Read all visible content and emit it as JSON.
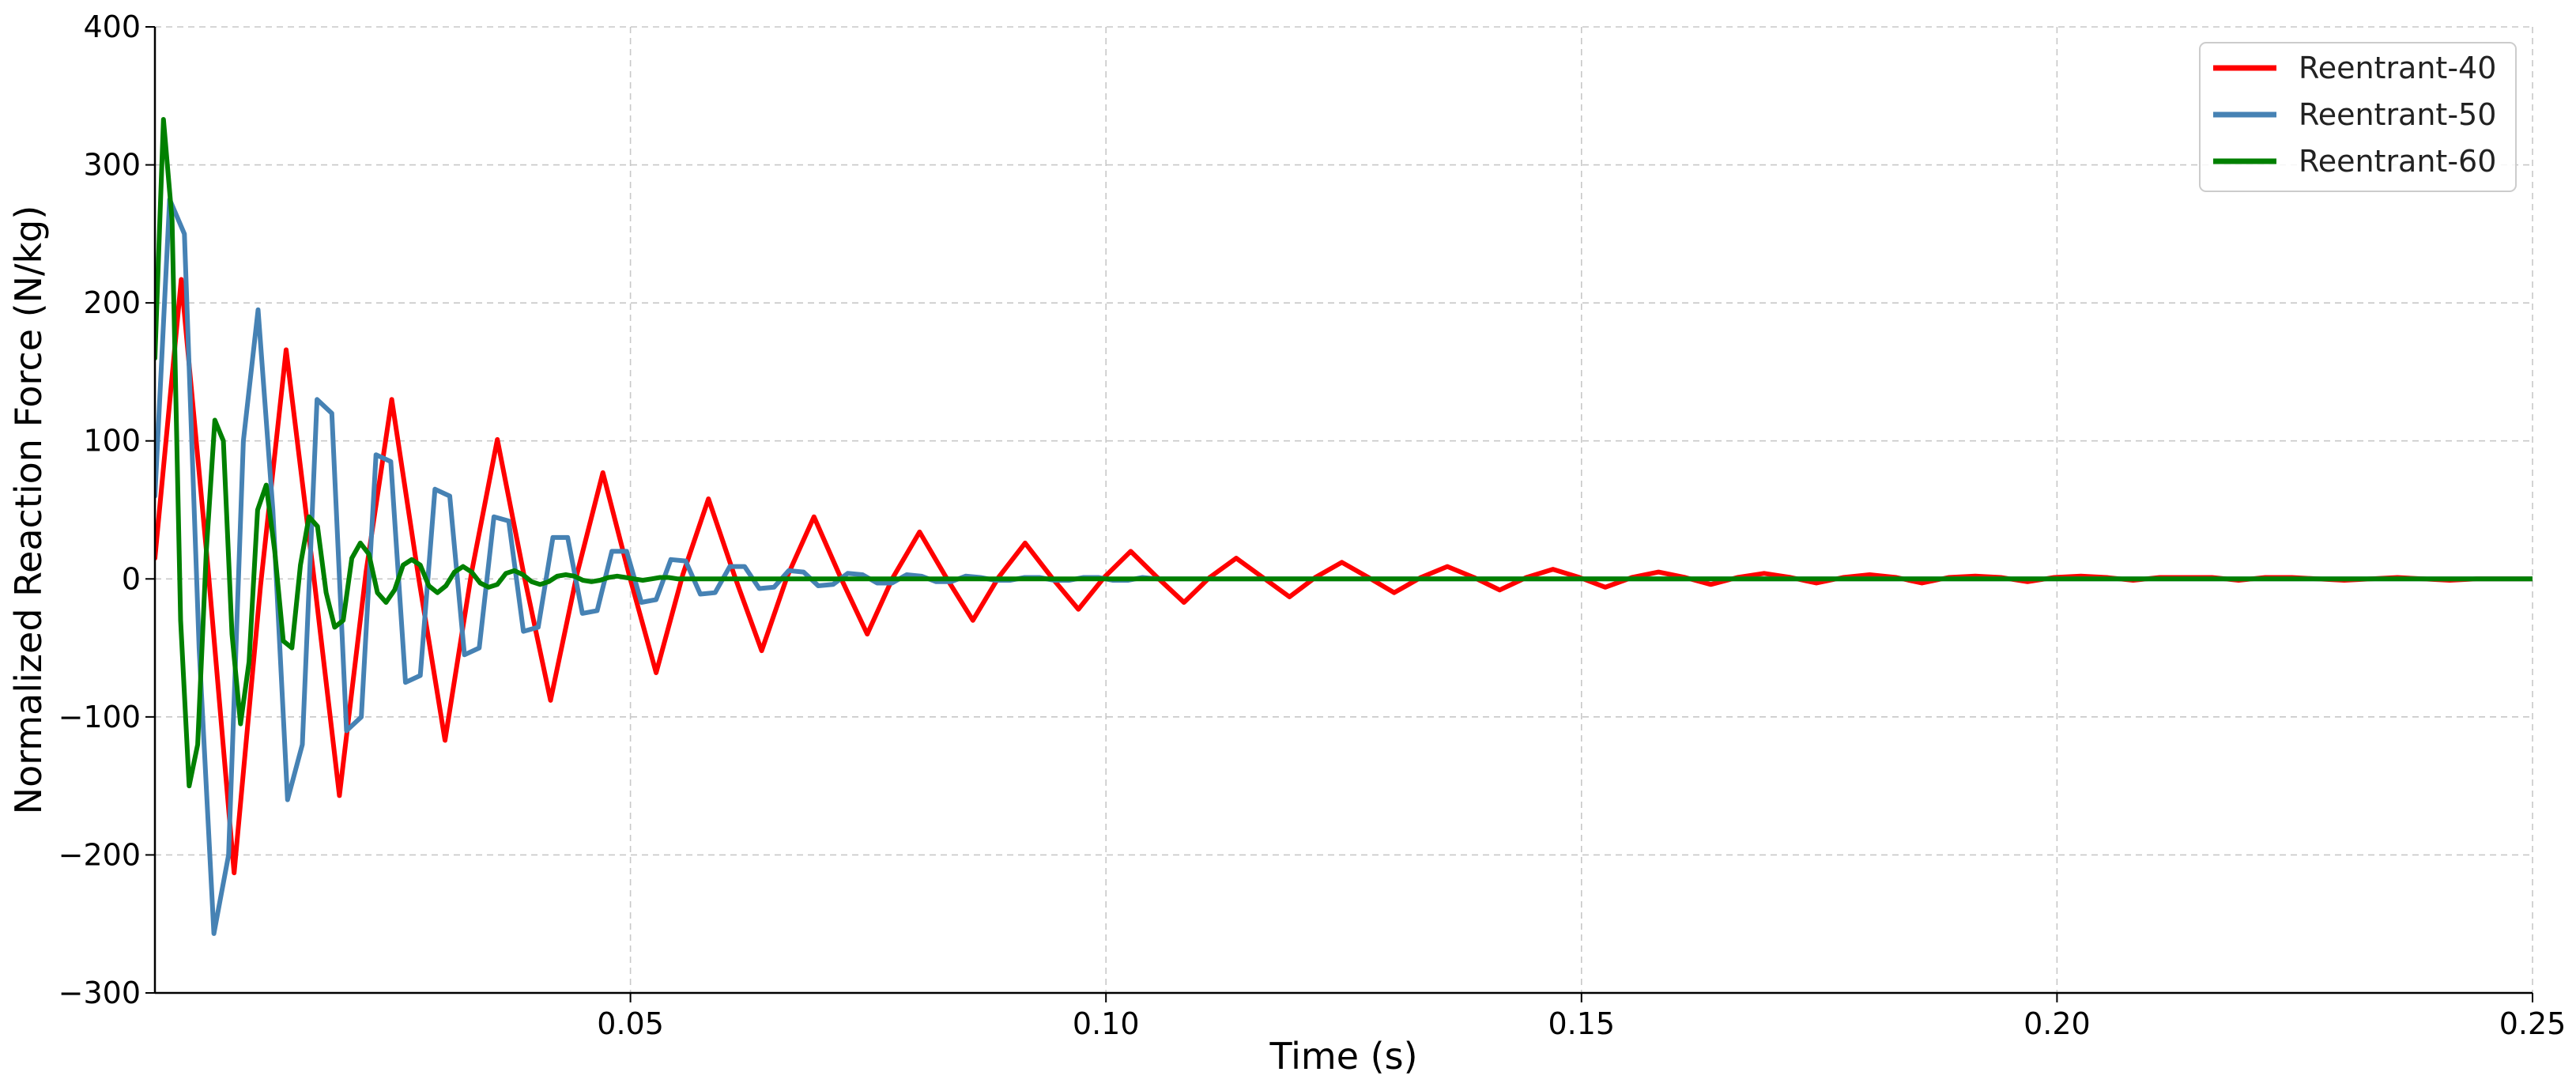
{
  "chart_data": {
    "type": "line",
    "title": "",
    "xlabel": "Time (s)",
    "ylabel": "Normalized Reaction Force (N/kg)",
    "xlim": [
      0.0,
      0.25
    ],
    "ylim": [
      -300,
      400
    ],
    "xticks": [
      {
        "value": 0.05,
        "label": "0.05"
      },
      {
        "value": 0.1,
        "label": "0.10"
      },
      {
        "value": 0.15,
        "label": "0.15"
      },
      {
        "value": 0.2,
        "label": "0.20"
      },
      {
        "value": 0.25,
        "label": "0.25"
      }
    ],
    "yticks": [
      {
        "value": 400,
        "label": "400"
      },
      {
        "value": 300,
        "label": "300"
      },
      {
        "value": 200,
        "label": "200"
      },
      {
        "value": 100,
        "label": "100"
      },
      {
        "value": 0,
        "label": "0"
      },
      {
        "value": -100,
        "label": "−100"
      },
      {
        "value": -200,
        "label": "−200"
      },
      {
        "value": -300,
        "label": "−300"
      }
    ],
    "grid": true,
    "legend_position": "top-right",
    "series": [
      {
        "name": "Reentrant-40",
        "color": "#ff0000",
        "x": [
          0.0,
          0.00277,
          0.00555,
          0.00833,
          0.0111,
          0.0138,
          0.0166,
          0.0194,
          0.0222,
          0.0249,
          0.0277,
          0.0305,
          0.0333,
          0.036,
          0.0388,
          0.0416,
          0.0444,
          0.0471,
          0.0499,
          0.0527,
          0.0555,
          0.0582,
          0.061,
          0.0638,
          0.0665,
          0.0693,
          0.0721,
          0.0749,
          0.0776,
          0.0804,
          0.0832,
          0.086,
          0.0887,
          0.0915,
          0.0943,
          0.0971,
          0.0998,
          0.1026,
          0.1054,
          0.1082,
          0.1109,
          0.1137,
          0.1165,
          0.1193,
          0.122,
          0.1248,
          0.1276,
          0.1303,
          0.1331,
          0.1359,
          0.1387,
          0.1414,
          0.1442,
          0.147,
          0.1498,
          0.1525,
          0.1553,
          0.1581,
          0.1609,
          0.1636,
          0.1664,
          0.1692,
          0.172,
          0.1747,
          0.1775,
          0.1803,
          0.1831,
          0.1858,
          0.1886,
          0.1914,
          0.1941,
          0.1969,
          0.1997,
          0.2025,
          0.2052,
          0.208,
          0.2108,
          0.2136,
          0.2163,
          0.2191,
          0.2219,
          0.2247,
          0.2274,
          0.2302,
          0.233,
          0.2358,
          0.2385,
          0.2413,
          0.2441,
          0.2469,
          0.25
        ],
        "values": [
          15,
          217,
          10,
          -213,
          -5,
          166,
          8,
          -157,
          5,
          130,
          2,
          -117,
          5,
          101,
          3,
          -88,
          4,
          77,
          2,
          -68,
          3,
          58,
          1,
          -52,
          2,
          45,
          1,
          -40,
          1,
          34,
          1,
          -30,
          1,
          26,
          1,
          -22,
          1,
          20,
          1,
          -17,
          1,
          15,
          1,
          -13,
          1,
          12,
          1,
          -10,
          1,
          9,
          1,
          -8,
          1,
          7,
          1,
          -6,
          1,
          5,
          1,
          -4,
          1,
          4,
          1,
          -3,
          1,
          3,
          1,
          -3,
          1,
          2,
          1,
          -2,
          1,
          2,
          1,
          -1,
          1,
          1,
          1,
          -1,
          1,
          1,
          0,
          -1,
          0,
          1,
          0,
          -1,
          0,
          0,
          0
        ]
      },
      {
        "name": "Reentrant-50",
        "color": "#4682b4",
        "x": [
          0.0,
          0.00155,
          0.0031,
          0.00465,
          0.0062,
          0.00775,
          0.0093,
          0.01085,
          0.0124,
          0.01395,
          0.0155,
          0.01705,
          0.0186,
          0.02015,
          0.0217,
          0.02325,
          0.0248,
          0.02635,
          0.0279,
          0.02945,
          0.031,
          0.03255,
          0.0341,
          0.03565,
          0.0372,
          0.03875,
          0.0403,
          0.04185,
          0.0434,
          0.04495,
          0.0465,
          0.04805,
          0.0496,
          0.05115,
          0.0527,
          0.05425,
          0.0558,
          0.05735,
          0.0589,
          0.06045,
          0.062,
          0.06355,
          0.0651,
          0.06665,
          0.0682,
          0.06975,
          0.0713,
          0.07285,
          0.0744,
          0.07595,
          0.0775,
          0.07905,
          0.0806,
          0.08215,
          0.0837,
          0.08525,
          0.0868,
          0.08835,
          0.0899,
          0.09145,
          0.093,
          0.09455,
          0.0961,
          0.09765,
          0.0992,
          0.10075,
          0.1023,
          0.10385,
          0.1054,
          0.10695,
          0.1085,
          0.11005,
          0.1116,
          0.1132,
          0.115,
          0.12,
          0.13,
          0.14,
          0.15,
          0.16,
          0.17,
          0.18,
          0.19,
          0.2,
          0.21,
          0.22,
          0.23,
          0.24,
          0.25
        ],
        "values": [
          60,
          275,
          250,
          -50,
          -257,
          -200,
          100,
          195,
          50,
          -160,
          -120,
          130,
          120,
          -110,
          -100,
          90,
          85,
          -75,
          -70,
          65,
          60,
          -55,
          -50,
          45,
          42,
          -38,
          -35,
          30,
          30,
          -25,
          -23,
          20,
          20,
          -17,
          -15,
          14,
          13,
          -11,
          -10,
          9,
          9,
          -7,
          -6,
          6,
          5,
          -5,
          -4,
          4,
          3,
          -3,
          -3,
          3,
          2,
          -2,
          -2,
          2,
          1,
          -1,
          -1,
          1,
          1,
          -1,
          -1,
          1,
          1,
          -1,
          -1,
          1,
          0,
          0,
          0,
          0,
          0,
          0,
          0,
          0,
          0,
          0,
          0,
          0,
          0,
          0,
          0,
          0,
          0,
          0,
          0,
          0,
          0
        ]
      },
      {
        "name": "Reentrant-60",
        "color": "#008000",
        "x": [
          0.0,
          0.0009,
          0.0018,
          0.0027,
          0.0036,
          0.0045,
          0.0054,
          0.0063,
          0.0072,
          0.0081,
          0.009,
          0.0099,
          0.0108,
          0.0117,
          0.0126,
          0.0135,
          0.0144,
          0.0153,
          0.0162,
          0.0171,
          0.018,
          0.0189,
          0.0198,
          0.0207,
          0.0216,
          0.0225,
          0.0234,
          0.0243,
          0.0252,
          0.0261,
          0.027,
          0.0279,
          0.0288,
          0.0297,
          0.0306,
          0.0315,
          0.0324,
          0.0333,
          0.0342,
          0.0351,
          0.036,
          0.0369,
          0.0378,
          0.0387,
          0.0396,
          0.0405,
          0.0414,
          0.0423,
          0.0432,
          0.0441,
          0.045,
          0.0459,
          0.0468,
          0.0477,
          0.0486,
          0.0495,
          0.0504,
          0.0513,
          0.0522,
          0.0531,
          0.054,
          0.055,
          0.06,
          0.07,
          0.08,
          0.09,
          0.1,
          0.12,
          0.14,
          0.16,
          0.18,
          0.2,
          0.22,
          0.24,
          0.25
        ],
        "values": [
          160,
          333,
          260,
          -30,
          -150,
          -120,
          20,
          115,
          100,
          -40,
          -105,
          -60,
          50,
          68,
          20,
          -45,
          -50,
          10,
          45,
          38,
          -10,
          -35,
          -30,
          15,
          26,
          18,
          -10,
          -17,
          -8,
          10,
          14,
          10,
          -5,
          -10,
          -5,
          5,
          9,
          5,
          -3,
          -6,
          -4,
          4,
          6,
          3,
          -2,
          -4,
          -2,
          2,
          3,
          2,
          -1,
          -2,
          -1,
          1,
          2,
          1,
          0,
          -1,
          0,
          1,
          1,
          0,
          0,
          0,
          0,
          0,
          0,
          0,
          0,
          0,
          0,
          0,
          0,
          0,
          0
        ]
      }
    ]
  }
}
